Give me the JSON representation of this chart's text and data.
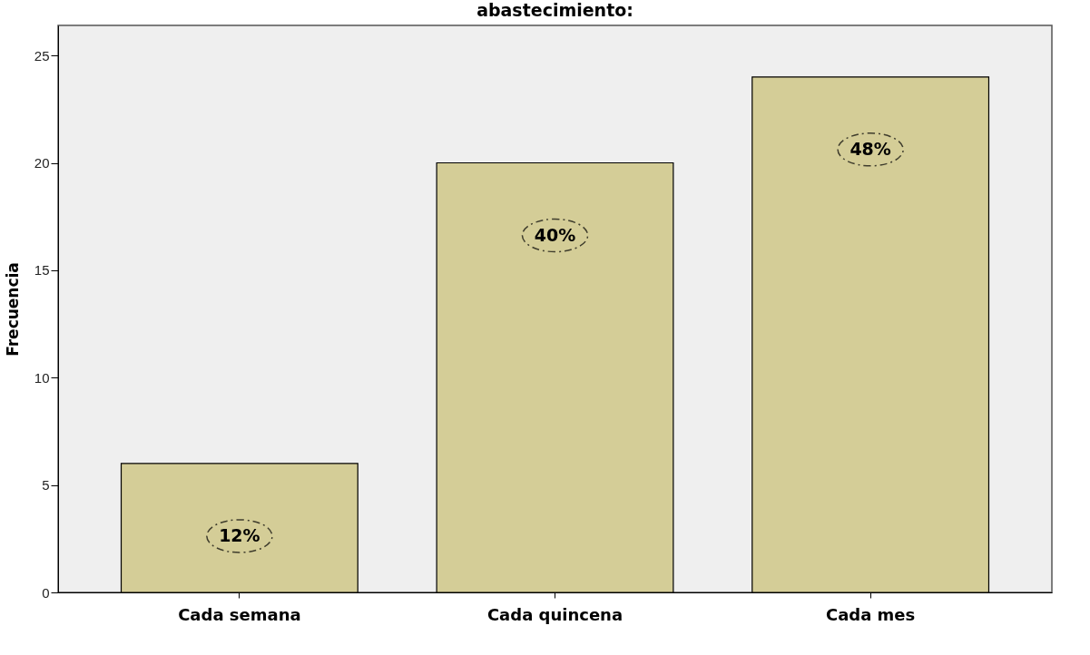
{
  "chart_data": {
    "type": "bar",
    "title": "abastecimiento:",
    "ylabel": "Frecuencia",
    "categories": [
      "Cada semana",
      "Cada quincena",
      "Cada mes"
    ],
    "values": [
      6,
      20,
      24
    ],
    "annotations": [
      "12%",
      "40%",
      "48%"
    ],
    "color": "#d4cd97",
    "ylim": [
      0,
      26.4
    ],
    "yticks": [
      0,
      5,
      10,
      15,
      20,
      25
    ],
    "grid": false
  }
}
